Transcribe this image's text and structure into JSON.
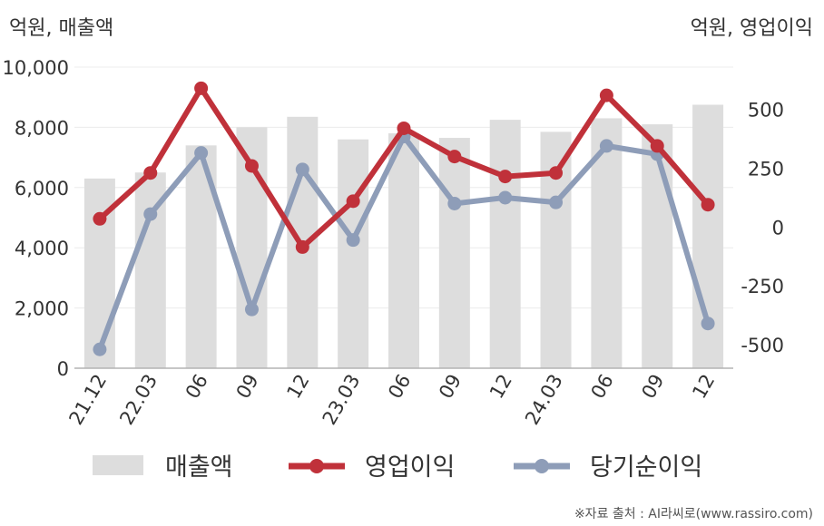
{
  "chart_data": {
    "type": "bar+line",
    "left_unit_label": "억원, 매출액",
    "right_unit_label": "억원, 영업이익",
    "categories": [
      "21.12",
      "22.03",
      "06",
      "09",
      "12",
      "23.03",
      "06",
      "09",
      "12",
      "24.03",
      "06",
      "09",
      "12"
    ],
    "left_axis": {
      "min": 0,
      "max": 10000,
      "ticks": [
        "0",
        "2,000",
        "4,000",
        "6,000",
        "8,000",
        "10,000"
      ],
      "tick_values": [
        0,
        2000,
        4000,
        6000,
        8000,
        10000
      ]
    },
    "right_axis": {
      "min": -600,
      "max": 680,
      "ticks": [
        "-500",
        "-250",
        "0",
        "250",
        "500"
      ],
      "tick_values": [
        -500,
        -250,
        0,
        250,
        500
      ]
    },
    "series": [
      {
        "name": "매출액",
        "type": "bar",
        "axis": "left",
        "color": "#dddddd",
        "values": [
          6300,
          6500,
          7400,
          8000,
          8350,
          7600,
          7800,
          7650,
          8250,
          7850,
          8300,
          8100,
          8750
        ]
      },
      {
        "name": "영업이익",
        "type": "line",
        "axis": "right",
        "color": "#c0313a",
        "values": [
          35,
          230,
          590,
          260,
          -85,
          110,
          420,
          300,
          215,
          230,
          560,
          345,
          95
        ]
      },
      {
        "name": "당기순이익",
        "type": "line",
        "axis": "right",
        "color": "#8e9db8",
        "values": [
          -520,
          55,
          315,
          -350,
          245,
          -55,
          385,
          100,
          125,
          105,
          345,
          310,
          -410
        ]
      }
    ],
    "grid": true,
    "legend_position": "bottom"
  },
  "credit": "※자료 출처 : AI라씨로(www.rassiro.com)"
}
